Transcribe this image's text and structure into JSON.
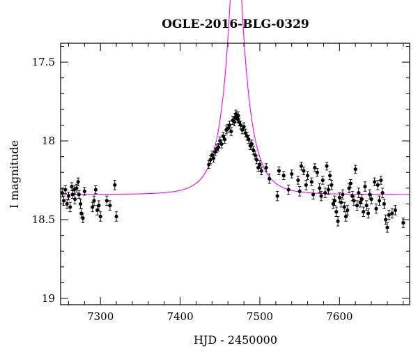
{
  "chart_data": {
    "type": "scatter",
    "title": "OGLE-2016-BLG-0329",
    "xlabel": "HJD - 2450000",
    "ylabel": "I magnitude",
    "xlim": [
      7250,
      7688
    ],
    "ylim": [
      19.04,
      17.38
    ],
    "y_inverted": true,
    "grid": false,
    "x_major_ticks": [
      7300,
      7400,
      7500,
      7600
    ],
    "x_tick_labels": [
      "7300",
      "7400",
      "7500",
      "7600"
    ],
    "x_minor_step": 20,
    "y_major_ticks": [
      17.5,
      18,
      18.5,
      19
    ],
    "y_tick_labels": [
      "17.5",
      "18",
      "18.5",
      "19"
    ],
    "y_minor_step": 0.1,
    "colors": {
      "model": "#ff00ff",
      "points": "#000000"
    },
    "model": {
      "type": "point-lens microlensing fit",
      "I_base": 18.34,
      "t0": 7470,
      "u0": 0.185,
      "tE": 26,
      "fs": 1.0
    },
    "series": [
      {
        "points": [
          [
            7252,
            18.33,
            0.025
          ],
          [
            7254,
            18.38,
            0.03
          ],
          [
            7256,
            18.31,
            0.025
          ],
          [
            7258,
            18.4,
            0.03
          ],
          [
            7260,
            18.35,
            0.025
          ],
          [
            7262,
            18.42,
            0.03
          ],
          [
            7264,
            18.29,
            0.025
          ],
          [
            7265,
            18.34,
            0.025
          ],
          [
            7267,
            18.31,
            0.025
          ],
          [
            7268,
            18.37,
            0.03
          ],
          [
            7270,
            18.3,
            0.025
          ],
          [
            7272,
            18.26,
            0.025
          ],
          [
            7273,
            18.34,
            0.025
          ],
          [
            7275,
            18.4,
            0.03
          ],
          [
            7276,
            18.46,
            0.03
          ],
          [
            7278,
            18.49,
            0.03
          ],
          [
            7280,
            18.32,
            0.025
          ],
          [
            7290,
            18.42,
            0.03
          ],
          [
            7292,
            18.38,
            0.03
          ],
          [
            7294,
            18.31,
            0.025
          ],
          [
            7296,
            18.44,
            0.03
          ],
          [
            7298,
            18.41,
            0.03
          ],
          [
            7300,
            18.48,
            0.03
          ],
          [
            7308,
            18.38,
            0.03
          ],
          [
            7312,
            18.41,
            0.03
          ],
          [
            7318,
            18.28,
            0.03
          ],
          [
            7320,
            18.48,
            0.03
          ],
          [
            7436,
            18.15,
            0.025
          ],
          [
            7438,
            18.12,
            0.025
          ],
          [
            7440,
            18.09,
            0.025
          ],
          [
            7442,
            18.11,
            0.025
          ],
          [
            7444,
            18.07,
            0.025
          ],
          [
            7446,
            18.05,
            0.025
          ],
          [
            7448,
            18.04,
            0.025
          ],
          [
            7450,
            18.0,
            0.025
          ],
          [
            7452,
            18.02,
            0.025
          ],
          [
            7454,
            17.97,
            0.025
          ],
          [
            7456,
            17.99,
            0.025
          ],
          [
            7458,
            17.93,
            0.025
          ],
          [
            7460,
            17.92,
            0.025
          ],
          [
            7462,
            17.9,
            0.025
          ],
          [
            7464,
            17.94,
            0.025
          ],
          [
            7466,
            17.87,
            0.025
          ],
          [
            7468,
            17.88,
            0.025
          ],
          [
            7469,
            17.85,
            0.025
          ],
          [
            7470,
            17.83,
            0.025
          ],
          [
            7471,
            17.84,
            0.025
          ],
          [
            7472,
            17.86,
            0.025
          ],
          [
            7473,
            17.84,
            0.025
          ],
          [
            7474,
            17.88,
            0.025
          ],
          [
            7476,
            17.9,
            0.025
          ],
          [
            7478,
            17.93,
            0.025
          ],
          [
            7480,
            17.91,
            0.025
          ],
          [
            7482,
            17.95,
            0.025
          ],
          [
            7484,
            17.97,
            0.025
          ],
          [
            7486,
            17.99,
            0.025
          ],
          [
            7488,
            18.03,
            0.025
          ],
          [
            7490,
            18.02,
            0.025
          ],
          [
            7492,
            18.06,
            0.025
          ],
          [
            7494,
            18.09,
            0.025
          ],
          [
            7496,
            18.12,
            0.025
          ],
          [
            7498,
            18.17,
            0.025
          ],
          [
            7500,
            18.15,
            0.025
          ],
          [
            7502,
            18.19,
            0.025
          ],
          [
            7508,
            18.17,
            0.025
          ],
          [
            7512,
            18.24,
            0.03
          ],
          [
            7522,
            18.35,
            0.03
          ],
          [
            7524,
            18.19,
            0.025
          ],
          [
            7530,
            18.22,
            0.025
          ],
          [
            7536,
            18.31,
            0.03
          ],
          [
            7540,
            18.21,
            0.025
          ],
          [
            7548,
            18.25,
            0.025
          ],
          [
            7550,
            18.32,
            0.03
          ],
          [
            7552,
            18.16,
            0.025
          ],
          [
            7555,
            18.19,
            0.025
          ],
          [
            7558,
            18.28,
            0.03
          ],
          [
            7560,
            18.22,
            0.025
          ],
          [
            7565,
            18.26,
            0.025
          ],
          [
            7567,
            18.34,
            0.03
          ],
          [
            7569,
            18.17,
            0.025
          ],
          [
            7572,
            18.2,
            0.025
          ],
          [
            7575,
            18.3,
            0.03
          ],
          [
            7577,
            18.35,
            0.03
          ],
          [
            7579,
            18.25,
            0.025
          ],
          [
            7582,
            18.33,
            0.03
          ],
          [
            7584,
            18.16,
            0.025
          ],
          [
            7586,
            18.31,
            0.03
          ],
          [
            7588,
            18.22,
            0.025
          ],
          [
            7590,
            18.28,
            0.03
          ],
          [
            7592,
            18.4,
            0.03
          ],
          [
            7594,
            18.38,
            0.03
          ],
          [
            7596,
            18.45,
            0.03
          ],
          [
            7598,
            18.51,
            0.03
          ],
          [
            7600,
            18.36,
            0.03
          ],
          [
            7602,
            18.39,
            0.03
          ],
          [
            7604,
            18.34,
            0.03
          ],
          [
            7606,
            18.42,
            0.03
          ],
          [
            7608,
            18.48,
            0.03
          ],
          [
            7610,
            18.44,
            0.03
          ],
          [
            7612,
            18.3,
            0.03
          ],
          [
            7614,
            18.27,
            0.025
          ],
          [
            7616,
            18.35,
            0.03
          ],
          [
            7618,
            18.38,
            0.03
          ],
          [
            7620,
            18.18,
            0.025
          ],
          [
            7622,
            18.41,
            0.03
          ],
          [
            7624,
            18.33,
            0.03
          ],
          [
            7626,
            18.39,
            0.03
          ],
          [
            7628,
            18.37,
            0.03
          ],
          [
            7630,
            18.45,
            0.03
          ],
          [
            7632,
            18.29,
            0.03
          ],
          [
            7634,
            18.41,
            0.03
          ],
          [
            7636,
            18.46,
            0.03
          ],
          [
            7638,
            18.34,
            0.03
          ],
          [
            7640,
            18.37,
            0.03
          ],
          [
            7644,
            18.26,
            0.025
          ],
          [
            7646,
            18.43,
            0.03
          ],
          [
            7648,
            18.28,
            0.03
          ],
          [
            7650,
            18.38,
            0.03
          ],
          [
            7652,
            18.25,
            0.025
          ],
          [
            7654,
            18.33,
            0.03
          ],
          [
            7656,
            18.4,
            0.03
          ],
          [
            7658,
            18.5,
            0.03
          ],
          [
            7660,
            18.55,
            0.03
          ],
          [
            7662,
            18.47,
            0.03
          ],
          [
            7666,
            18.46,
            0.03
          ],
          [
            7670,
            18.44,
            0.03
          ],
          [
            7680,
            18.52,
            0.03
          ]
        ]
      }
    ]
  }
}
